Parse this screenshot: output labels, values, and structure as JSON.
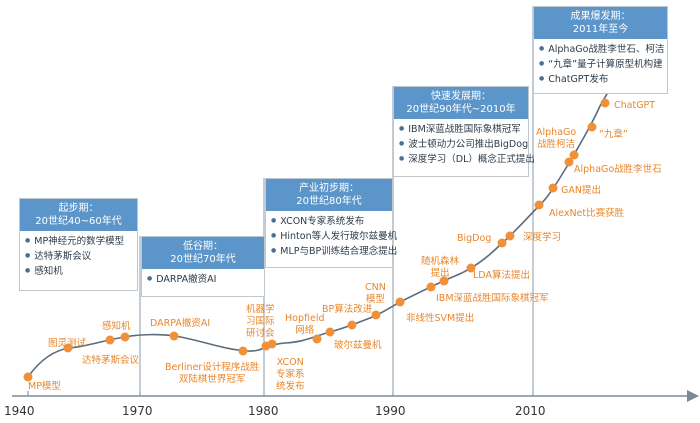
{
  "colors": {
    "curve": "#5b6c7d",
    "point": "#f0913a",
    "label": "#e8862b",
    "period_header": "#5b95c9",
    "axis": "#7b8a99"
  },
  "axis": {
    "years": [
      "1940",
      "1970",
      "1980",
      "1990",
      "2010"
    ]
  },
  "periods": [
    {
      "title_line1": "起步期：",
      "title_line2": "20世纪40~60年代",
      "items": [
        "MP神经元的数学模型",
        "达特茅斯会议",
        "感知机"
      ]
    },
    {
      "title_line1": "低谷期：",
      "title_line2": "20世纪70年代",
      "items": [
        "DARPA撤资AI"
      ]
    },
    {
      "title_line1": "产业初步期：",
      "title_line2": "20世纪80年代",
      "items": [
        "XCON专家系统发布",
        "Hinton等人发行玻尔兹曼机",
        "MLP与BP训练结合理念提出"
      ]
    },
    {
      "title_line1": "快速发展期：",
      "title_line2": "20世纪90年代~2010年",
      "items": [
        "IBM深蓝战胜国际象棋冠军",
        "波士顿动力公司推出BigDog",
        "深度学习（DL）概念正式提出"
      ]
    },
    {
      "title_line1": "成果爆发期：",
      "title_line2": "2011年至今",
      "items": [
        "AlphaGo战胜李世石、柯洁",
        "“九章”量子计算原型机构建",
        "ChatGPT发布"
      ]
    }
  ],
  "events": {
    "mp": "MP模型",
    "turing": "图灵测试",
    "dartmouth": "达特茅斯会议",
    "perceptron": "感知机",
    "darpa": "DARPA撤资AI",
    "berliner_1": "Berliner设计程序战胜",
    "berliner_2": "双陆棋世界冠军",
    "ml_conf_1": "机器学",
    "ml_conf_2": "习国际",
    "ml_conf_3": "研讨会",
    "xcon_1": "XCON",
    "xcon_2": "专家系",
    "xcon_3": "统发布",
    "hopfield_1": "Hopfield",
    "hopfield_2": "网络",
    "bp": "BP算法改进",
    "boltzmann": "玻尔兹曼机",
    "cnn_1": "CNN",
    "cnn_2": "模型",
    "svm": "非线性SVM提出",
    "rf_1": "随机森林",
    "rf_2": "提出",
    "ibm": "IBM深蓝战胜国际象棋冠军",
    "lda": "LDA算法提出",
    "bigdog": "BigDog",
    "dl": "深度学习",
    "alexnet": "AlexNet比赛获胜",
    "gan": "GAN提出",
    "alphago_lee": "AlphaGo战胜李世石",
    "alphago_kejie_1": "AlphaGo",
    "alphago_kejie_2": "战胜柯洁",
    "jiuzhang": "“九章”",
    "chatgpt": "ChatGPT"
  }
}
